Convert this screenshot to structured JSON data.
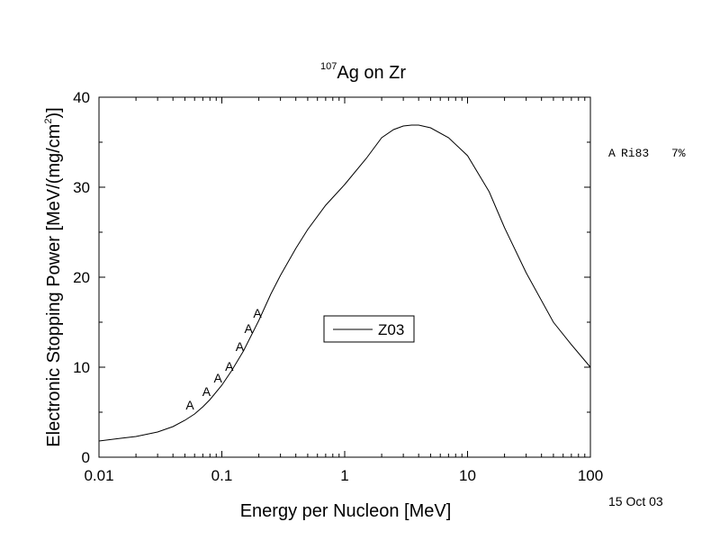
{
  "chart_data": {
    "type": "line",
    "title_superscript": "107",
    "title": "Ag on Zr",
    "xlabel": "Energy per Nucleon [MeV]",
    "ylabel_main": "Electronic Stopping Power [MeV/(mg/cm",
    "ylabel_superscript": "2",
    "ylabel_close": ")]",
    "x_scale": "log",
    "xlim": [
      0.01,
      100
    ],
    "ylim": [
      0,
      40
    ],
    "x_ticks": [
      {
        "value": 0.01,
        "label": "0.01"
      },
      {
        "value": 0.1,
        "label": "0.1"
      },
      {
        "value": 1,
        "label": "1"
      },
      {
        "value": 10,
        "label": "10"
      },
      {
        "value": 100,
        "label": "100"
      }
    ],
    "y_ticks": [
      {
        "value": 0,
        "label": "0"
      },
      {
        "value": 10,
        "label": "10"
      },
      {
        "value": 20,
        "label": "20"
      },
      {
        "value": 30,
        "label": "30"
      },
      {
        "value": 40,
        "label": "40"
      }
    ],
    "series": [
      {
        "name": "Z03",
        "color": "#000000",
        "x": [
          0.01,
          0.015,
          0.02,
          0.03,
          0.04,
          0.05,
          0.06,
          0.07,
          0.08,
          0.1,
          0.12,
          0.15,
          0.2,
          0.25,
          0.3,
          0.4,
          0.5,
          0.7,
          1.0,
          1.5,
          2.0,
          2.5,
          3.0,
          3.5,
          4.0,
          5.0,
          7.0,
          10,
          15,
          20,
          30,
          50,
          70,
          100
        ],
        "y": [
          1.8,
          2.1,
          2.3,
          2.8,
          3.4,
          4.1,
          4.8,
          5.6,
          6.4,
          8.0,
          9.6,
          11.8,
          15.2,
          18.1,
          20.2,
          23.2,
          25.3,
          28.0,
          30.3,
          33.2,
          35.5,
          36.4,
          36.8,
          36.9,
          36.9,
          36.6,
          35.5,
          33.5,
          29.5,
          25.5,
          20.5,
          15.0,
          12.5,
          10.0
        ]
      }
    ],
    "experimental": {
      "marker": "A",
      "x": [
        0.055,
        0.075,
        0.093,
        0.115,
        0.14,
        0.165,
        0.195
      ],
      "y": [
        5.8,
        7.3,
        8.8,
        10.1,
        12.3,
        14.3,
        16.0
      ]
    },
    "legend": {
      "label": "Z03",
      "position": "center-right"
    },
    "reference": {
      "marker": "A",
      "source": "Ri83",
      "uncertainty": "7%"
    },
    "date": "15 Oct 03",
    "grid": false
  }
}
